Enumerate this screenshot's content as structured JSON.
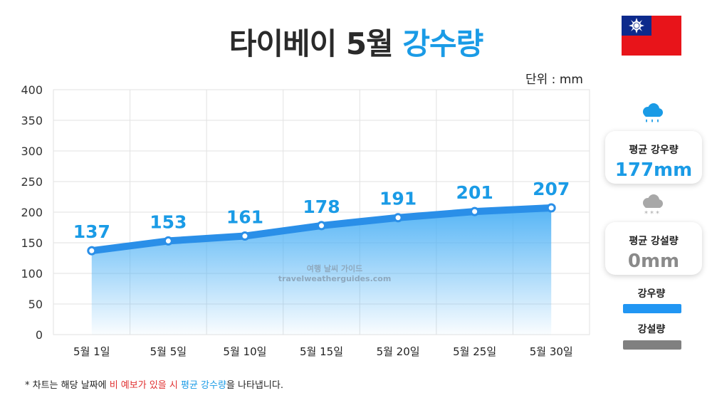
{
  "title": {
    "main": "타이베이 5월",
    "accent": "강수량"
  },
  "unit_label": "단위 : mm",
  "colors": {
    "accent": "#1a9be6",
    "rain": "#2196f3",
    "snow": "#808080"
  },
  "cards": {
    "rain": {
      "label": "평균 강우량",
      "value": "177mm",
      "icon": "rain-cloud-icon"
    },
    "snow": {
      "label": "평균 강설량",
      "value": "0mm",
      "icon": "snow-cloud-icon"
    }
  },
  "legend": {
    "rain": "강우량",
    "snow": "강설량"
  },
  "footnote": {
    "prefix": "* 차트는 해당 날짜에 ",
    "red": "비 예보가 있을 시",
    "blue": "평균 강수량",
    "suffix": "을 나타냅니다."
  },
  "chart_data": {
    "type": "area",
    "categories": [
      "5월 1일",
      "5월 5일",
      "5월 10일",
      "5월 15일",
      "5월 20일",
      "5월 25일",
      "5월 30일"
    ],
    "series": [
      {
        "name": "강우량",
        "values": [
          137,
          153,
          161,
          178,
          191,
          201,
          207
        ]
      }
    ],
    "ylim": [
      0,
      400
    ],
    "yticks": [
      0,
      50,
      100,
      150,
      200,
      250,
      300,
      350,
      400
    ],
    "ylabel": "단위 : mm",
    "watermark": [
      "여행 날씨 가이드",
      "travelweatherguides.com"
    ]
  }
}
